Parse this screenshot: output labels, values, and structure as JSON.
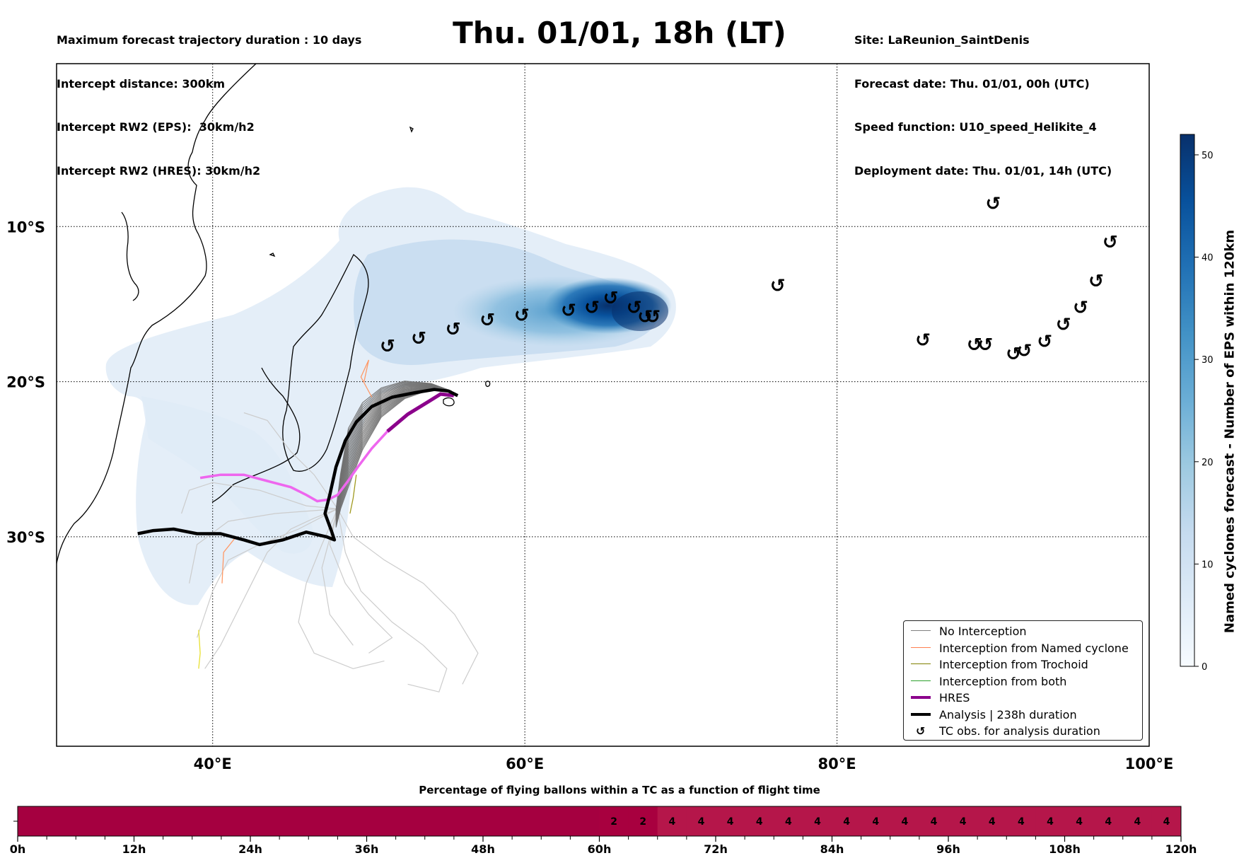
{
  "header": {
    "left_lines": [
      "Maximum forecast trajectory duration : 10 days",
      "Intercept distance: 300km",
      "Intercept RW2 (EPS):  30km/h2",
      "Intercept RW2 (HRES): 30km/h2"
    ],
    "title": "Thu. 01/01, 18h (LT)",
    "right_lines": [
      "Site: LaReunion_SaintDenis",
      "Forecast date: Thu. 01/01, 00h (UTC)",
      "Speed function: U10_speed_Helikite_4",
      "Deployment date: Thu. 01/01, 14h (UTC)"
    ]
  },
  "map": {
    "lon_range": [
      30,
      100
    ],
    "lat_range": [
      -43.5,
      0.5
    ],
    "lon_ticks": [
      {
        "value": 40,
        "label": "40°E"
      },
      {
        "value": 60,
        "label": "60°E"
      },
      {
        "value": 80,
        "label": "80°E"
      },
      {
        "value": 100,
        "label": "100°E"
      }
    ],
    "lat_ticks": [
      {
        "value": -10,
        "label": "10°S"
      },
      {
        "value": -20,
        "label": "20°S"
      },
      {
        "value": -30,
        "label": "30°S"
      }
    ],
    "grid": "dotted",
    "site": {
      "name": "LaReunion_SaintDenis",
      "lon": 55.45,
      "lat": -20.9
    },
    "hres_track": [
      [
        55.45,
        -20.9
      ],
      [
        54.6,
        -20.8
      ],
      [
        53.8,
        -21.3
      ],
      [
        52.5,
        -22.1
      ],
      [
        51.2,
        -23.2
      ],
      [
        50.2,
        -24.3
      ],
      [
        49.3,
        -25.5
      ],
      [
        48.6,
        -26.5
      ],
      [
        48.0,
        -27.3
      ],
      [
        47.4,
        -27.6
      ],
      [
        46.7,
        -27.7
      ],
      [
        46.0,
        -27.3
      ],
      [
        45.0,
        -26.8
      ],
      [
        43.5,
        -26.4
      ],
      [
        42.0,
        -26.0
      ],
      [
        40.5,
        -26.0
      ],
      [
        39.2,
        -26.2
      ]
    ],
    "analysis_track": [
      [
        55.7,
        -20.9
      ],
      [
        55.1,
        -20.6
      ],
      [
        54.2,
        -20.5
      ],
      [
        53.0,
        -20.7
      ],
      [
        51.5,
        -21.0
      ],
      [
        50.2,
        -21.6
      ],
      [
        49.2,
        -22.6
      ],
      [
        48.5,
        -23.8
      ],
      [
        47.9,
        -25.5
      ],
      [
        47.5,
        -27.3
      ],
      [
        47.2,
        -28.5
      ],
      [
        47.6,
        -29.6
      ],
      [
        47.8,
        -30.2
      ],
      [
        47.3,
        -30.0
      ],
      [
        46.0,
        -29.7
      ],
      [
        44.5,
        -30.2
      ],
      [
        43.0,
        -30.5
      ],
      [
        42.0,
        -30.2
      ],
      [
        40.5,
        -29.8
      ],
      [
        39.0,
        -29.8
      ],
      [
        37.5,
        -29.5
      ],
      [
        36.2,
        -29.6
      ],
      [
        35.2,
        -29.8
      ]
    ],
    "tc_obs": [
      [
        51.2,
        -17.7
      ],
      [
        53.2,
        -17.2
      ],
      [
        55.4,
        -16.6
      ],
      [
        57.6,
        -16.0
      ],
      [
        59.8,
        -15.7
      ],
      [
        62.8,
        -15.4
      ],
      [
        64.3,
        -15.2
      ],
      [
        65.5,
        -14.6
      ],
      [
        67.0,
        -15.2
      ],
      [
        67.7,
        -15.8
      ],
      [
        68.2,
        -15.8
      ],
      [
        76.2,
        -13.8
      ],
      [
        85.5,
        -17.3
      ],
      [
        88.8,
        -17.6
      ],
      [
        89.5,
        -17.6
      ],
      [
        91.3,
        -18.2
      ],
      [
        92.0,
        -18.0
      ],
      [
        93.3,
        -17.4
      ],
      [
        94.5,
        -16.3
      ],
      [
        95.6,
        -15.2
      ],
      [
        96.6,
        -13.5
      ],
      [
        97.5,
        -11.0
      ],
      [
        90.0,
        -8.5
      ]
    ],
    "density_peak": {
      "lon": 67.5,
      "lat": -15.7,
      "value": 52
    }
  },
  "legend": {
    "items": [
      {
        "label": "No Interception",
        "color": "#808080",
        "width": 1.5
      },
      {
        "label": "Interception from Named cyclone",
        "color": "#ff7f50",
        "width": 1.5
      },
      {
        "label": "Interception from Trochoid",
        "color": "#808000",
        "width": 1.5
      },
      {
        "label": "Interception from both",
        "color": "#2ca02c",
        "width": 1.5
      },
      {
        "label": "HRES",
        "color": "#8b008b",
        "width": 4
      },
      {
        "label": "Analysis | 238h duration",
        "color": "#000000",
        "width": 4
      }
    ],
    "symbol_item": {
      "label": "TC obs. for analysis duration",
      "symbol": "↺"
    }
  },
  "colorbar": {
    "label": "Named cyclones forecast - Number of EPS within 120km",
    "min": 0,
    "max": 52,
    "ticks": [
      0,
      10,
      20,
      30,
      40,
      50
    ],
    "colors": [
      "#f7fbff",
      "#deebf7",
      "#c6dbef",
      "#9ecae1",
      "#6baed6",
      "#4292c6",
      "#2171b5",
      "#08519c",
      "#08306b"
    ]
  },
  "time_bar": {
    "title": "Percentage of flying ballons within a TC as a function of flight time",
    "tick_labels": [
      "0h",
      "12h",
      "24h",
      "36h",
      "48h",
      "60h",
      "72h",
      "84h",
      "96h",
      "108h",
      "120h"
    ],
    "tick_hours": [
      0,
      12,
      24,
      36,
      48,
      60,
      72,
      84,
      96,
      108,
      120
    ],
    "cell_hours": 3,
    "cells": [
      {
        "start": 0,
        "end": 60,
        "value": 0,
        "label": ""
      },
      {
        "start": 60,
        "end": 63,
        "value": 2,
        "label": "2"
      },
      {
        "start": 63,
        "end": 66,
        "value": 2,
        "label": "2"
      },
      {
        "start": 66,
        "end": 69,
        "value": 4,
        "label": "4"
      },
      {
        "start": 69,
        "end": 72,
        "value": 4,
        "label": "4"
      },
      {
        "start": 72,
        "end": 75,
        "value": 4,
        "label": "4"
      },
      {
        "start": 75,
        "end": 78,
        "value": 4,
        "label": "4"
      },
      {
        "start": 78,
        "end": 81,
        "value": 4,
        "label": "4"
      },
      {
        "start": 81,
        "end": 84,
        "value": 4,
        "label": "4"
      },
      {
        "start": 84,
        "end": 87,
        "value": 4,
        "label": "4"
      },
      {
        "start": 87,
        "end": 90,
        "value": 4,
        "label": "4"
      },
      {
        "start": 90,
        "end": 93,
        "value": 4,
        "label": "4"
      },
      {
        "start": 93,
        "end": 96,
        "value": 4,
        "label": "4"
      },
      {
        "start": 96,
        "end": 99,
        "value": 4,
        "label": "4"
      },
      {
        "start": 99,
        "end": 102,
        "value": 4,
        "label": "4"
      },
      {
        "start": 102,
        "end": 105,
        "value": 4,
        "label": "4"
      },
      {
        "start": 105,
        "end": 108,
        "value": 4,
        "label": "4"
      },
      {
        "start": 108,
        "end": 111,
        "value": 4,
        "label": "4"
      },
      {
        "start": 111,
        "end": 114,
        "value": 4,
        "label": "4"
      },
      {
        "start": 114,
        "end": 117,
        "value": 4,
        "label": "4"
      },
      {
        "start": 117,
        "end": 120,
        "value": 4,
        "label": "4"
      }
    ],
    "colors": {
      "0": "#a50040",
      "2": "#a8003f",
      "4": "#b5164a"
    }
  }
}
